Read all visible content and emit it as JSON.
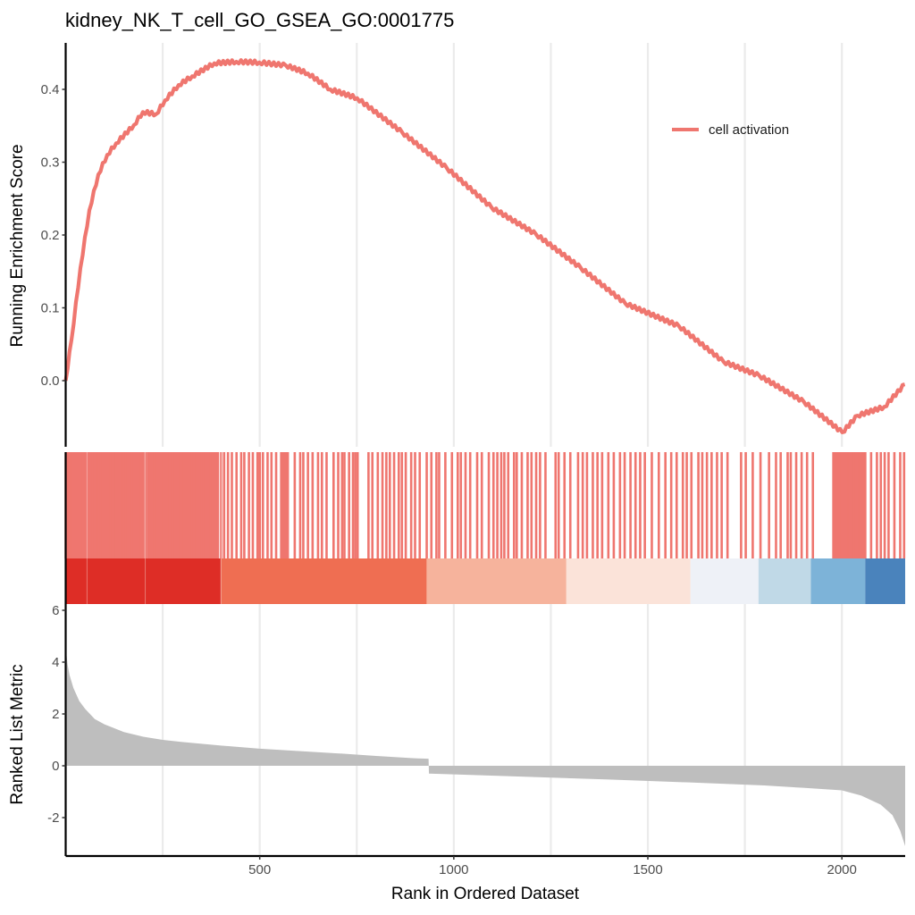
{
  "chart_data": {
    "type": "line",
    "title": "kidney_NK_T_cell_GO_GSEA_GO:0001775",
    "legend": {
      "entries": [
        "cell activation"
      ],
      "placement": "top-right",
      "color": "#EF766F"
    },
    "x_axis": {
      "label": "Rank in Ordered Dataset",
      "range": [
        0,
        2163
      ],
      "ticks": [
        500,
        1000,
        1500,
        2000
      ],
      "tick_labels": [
        "500",
        "1000",
        "1500",
        "2000"
      ],
      "gridlines": [
        250,
        500,
        750,
        1000,
        1250,
        1500,
        1750,
        2000
      ]
    },
    "panels": [
      {
        "name": "running-enrichment-score",
        "type": "line",
        "ylabel": "Running Enrichment Score",
        "ylim": [
          -0.09,
          0.46
        ],
        "yticks": [
          0.0,
          0.1,
          0.2,
          0.3,
          0.4
        ],
        "ytick_labels": [
          "0.0",
          "0.1",
          "0.2",
          "0.3",
          "0.4"
        ],
        "series": [
          {
            "name": "cell activation",
            "color": "#EF766F",
            "x": [
              0,
              15,
              38,
              61,
              84,
              107,
              130,
              176,
              199,
              233,
              256,
              291,
              326,
              383,
              440,
              499,
              567,
              624,
              682,
              751,
              867,
              982,
              1097,
              1212,
              1327,
              1442,
              1580,
              1695,
              1787,
              1902,
              2001,
              2040,
              2109,
              2162
            ],
            "y": [
              0.0,
              0.056,
              0.155,
              0.234,
              0.283,
              0.31,
              0.326,
              0.351,
              0.369,
              0.366,
              0.385,
              0.406,
              0.418,
              0.436,
              0.438,
              0.437,
              0.433,
              0.422,
              0.4,
              0.388,
              0.341,
              0.292,
              0.238,
              0.201,
              0.155,
              0.106,
              0.075,
              0.026,
              0.007,
              -0.029,
              -0.071,
              -0.048,
              -0.036,
              -0.005
            ]
          }
        ]
      },
      {
        "name": "gene-hits",
        "type": "rug",
        "color": "#EF766F",
        "hit_ranks": [
          0,
          5,
          10,
          15,
          20,
          25,
          30,
          35,
          40,
          45,
          50,
          55,
          60,
          65,
          70,
          75,
          80,
          85,
          90,
          95,
          100,
          110,
          115,
          120,
          125,
          130,
          135,
          140,
          145,
          150,
          155,
          160,
          165,
          170,
          175,
          180,
          185,
          190,
          195,
          200,
          206,
          212,
          218,
          222,
          228,
          235,
          245,
          252,
          260,
          268,
          275,
          282,
          290,
          298,
          305,
          312,
          320,
          330,
          340,
          350,
          355,
          360,
          368,
          378,
          386,
          392,
          400,
          408,
          418,
          428,
          440,
          452,
          460,
          472,
          482,
          494,
          500,
          508,
          520,
          530,
          542,
          555,
          565,
          572,
          590,
          604,
          612,
          624,
          636,
          650,
          660,
          672,
          690,
          702,
          712,
          718,
          730,
          740,
          746,
          752,
          780,
          790,
          804,
          816,
          826,
          835,
          846,
          858,
          866,
          876,
          890,
          900,
          912,
          930,
          942,
          955,
          962,
          978,
          995,
          1010,
          1018,
          1030,
          1042,
          1060,
          1072,
          1090,
          1102,
          1112,
          1122,
          1130,
          1140,
          1155,
          1162,
          1175,
          1190,
          1200,
          1212,
          1222,
          1236,
          1262,
          1270,
          1285,
          1300,
          1320,
          1332,
          1343,
          1358,
          1370,
          1382,
          1398,
          1412,
          1428,
          1440,
          1455,
          1468,
          1480,
          1492,
          1510,
          1528,
          1545,
          1560,
          1574,
          1590,
          1600,
          1612,
          1630,
          1640,
          1652,
          1664,
          1678,
          1690,
          1705,
          1740,
          1752,
          1770,
          1790,
          1812,
          1830,
          1842,
          1860,
          1868,
          1882,
          1896,
          1910,
          1925,
          1998,
          2005,
          2012,
          2020,
          2030,
          2040,
          2048,
          2060,
          2075,
          2090,
          2100,
          2110,
          2120,
          2135,
          2150,
          2160
        ],
        "dense_ranges": [
          [
            0,
            200
          ],
          [
            210,
            395
          ],
          [
            555,
            575
          ],
          [
            1975,
            2060
          ]
        ]
      },
      {
        "name": "rank-heatmap",
        "type": "heatmap",
        "bands": [
          {
            "from": 0,
            "to": 400,
            "color": "#DE2D26"
          },
          {
            "from": 400,
            "to": 930,
            "color": "#EF6E52"
          },
          {
            "from": 930,
            "to": 1290,
            "color": "#F6B39C"
          },
          {
            "from": 1290,
            "to": 1610,
            "color": "#FBE3D9"
          },
          {
            "from": 1610,
            "to": 1785,
            "color": "#EEF1F7"
          },
          {
            "from": 1785,
            "to": 1920,
            "color": "#C0D9E7"
          },
          {
            "from": 1920,
            "to": 2060,
            "color": "#7DB3D8"
          },
          {
            "from": 2060,
            "to": 2163,
            "color": "#4A83BC"
          }
        ]
      },
      {
        "name": "ranked-list-metric",
        "type": "area",
        "ylabel": "Ranked List Metric",
        "ylim": [
          -3.4,
          6.1
        ],
        "yticks": [
          -2,
          0,
          2,
          4,
          6
        ],
        "ytick_labels": [
          "-2",
          "0",
          "2",
          "4",
          "6"
        ],
        "color": "#BEBEBE",
        "x": [
          0,
          2,
          5,
          10,
          20,
          35,
          50,
          75,
          100,
          150,
          200,
          250,
          300,
          400,
          500,
          600,
          700,
          800,
          900,
          935,
          936,
          1000,
          1200,
          1400,
          1600,
          1800,
          1900,
          2000,
          2050,
          2100,
          2130,
          2150,
          2163
        ],
        "y": [
          5.5,
          4.3,
          3.9,
          3.5,
          3.0,
          2.5,
          2.2,
          1.8,
          1.6,
          1.3,
          1.12,
          1.0,
          0.92,
          0.78,
          0.66,
          0.57,
          0.48,
          0.38,
          0.29,
          0.27,
          -0.3,
          -0.33,
          -0.43,
          -0.53,
          -0.64,
          -0.76,
          -0.85,
          -0.95,
          -1.15,
          -1.5,
          -1.9,
          -2.5,
          -3.1
        ]
      }
    ]
  }
}
